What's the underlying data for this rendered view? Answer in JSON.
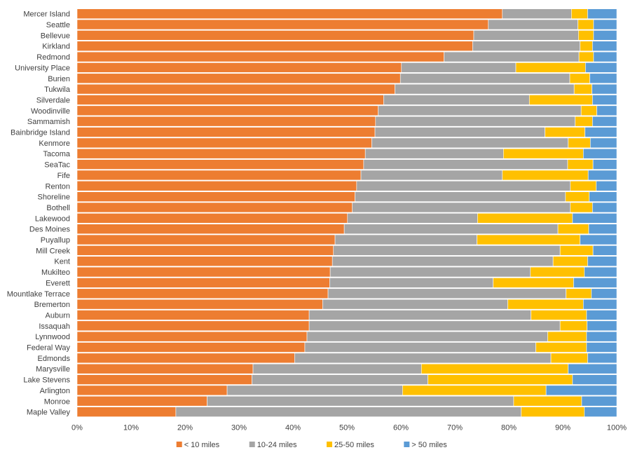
{
  "chart_data": {
    "type": "bar",
    "orientation": "horizontal",
    "stacked": "percent",
    "title": "",
    "xlabel": "",
    "ylabel": "",
    "xlim": [
      0,
      100
    ],
    "x_ticks": [
      "0%",
      "10%",
      "20%",
      "30%",
      "40%",
      "50%",
      "60%",
      "70%",
      "80%",
      "90%",
      "100%"
    ],
    "grid": false,
    "legend_position": "bottom",
    "categories": [
      "Mercer Island",
      "Seattle",
      "Bellevue",
      "Kirkland",
      "Redmond",
      "University Place",
      "Burien",
      "Tukwila",
      "Silverdale",
      "Woodinville",
      "Sammamish",
      "Bainbridge Island",
      "Kenmore",
      "Tacoma",
      "SeaTac",
      "Fife",
      "Renton",
      "Shoreline",
      "Bothell",
      "Lakewood",
      "Des Moines",
      "Puyallup",
      "Mill Creek",
      "Kent",
      "Mukilteo",
      "Everett",
      "Mountlake Terrace",
      "Bremerton",
      "Auburn",
      "Issaquah",
      "Lynnwood",
      "Federal Way",
      "Edmonds",
      "Marysville",
      "Lake Stevens",
      "Arlington",
      "Monroe",
      "Maple Valley"
    ],
    "series": [
      {
        "name": "< 10 miles",
        "color": "#ED7D31",
        "values": [
          78.8,
          76.2,
          73.5,
          73.3,
          68.0,
          60.1,
          59.9,
          58.9,
          56.8,
          55.8,
          55.3,
          55.2,
          54.6,
          53.4,
          53.1,
          52.6,
          51.8,
          51.5,
          51.0,
          50.1,
          49.5,
          47.8,
          47.5,
          47.3,
          46.9,
          46.8,
          46.5,
          45.5,
          43.0,
          43.0,
          42.6,
          42.2,
          40.3,
          32.6,
          32.4,
          27.8,
          24.1,
          18.3
        ]
      },
      {
        "name": "10-24 miles",
        "color": "#A5A5A5",
        "values": [
          12.8,
          16.6,
          19.4,
          19.9,
          25.0,
          21.2,
          31.4,
          33.2,
          27.0,
          37.6,
          37.0,
          31.5,
          36.4,
          25.6,
          37.8,
          26.2,
          39.6,
          39.0,
          40.4,
          24.1,
          39.6,
          26.3,
          42.0,
          40.9,
          37.1,
          30.3,
          44.1,
          34.3,
          41.1,
          46.5,
          44.6,
          42.8,
          47.5,
          31.2,
          32.6,
          32.5,
          56.8,
          64.0
        ]
      },
      {
        "name": "25-50 miles",
        "color": "#FFC000",
        "values": [
          3.0,
          2.9,
          2.8,
          2.3,
          2.7,
          12.9,
          3.7,
          3.3,
          11.7,
          2.9,
          3.2,
          7.4,
          4.1,
          14.8,
          4.7,
          15.9,
          4.8,
          4.4,
          4.1,
          17.6,
          5.7,
          19.1,
          6.1,
          6.4,
          10.0,
          14.9,
          4.7,
          14.0,
          10.3,
          5.0,
          7.2,
          9.4,
          6.8,
          27.2,
          26.8,
          26.6,
          12.6,
          11.7
        ]
      },
      {
        "name": "> 50 miles",
        "color": "#5B9BD5",
        "values": [
          5.4,
          4.3,
          4.3,
          4.5,
          4.3,
          5.8,
          5.0,
          4.6,
          4.5,
          3.7,
          4.5,
          5.9,
          4.9,
          6.2,
          4.4,
          5.3,
          3.8,
          5.1,
          4.5,
          8.2,
          5.2,
          6.8,
          4.4,
          5.4,
          6.0,
          8.0,
          4.7,
          6.2,
          5.6,
          5.5,
          5.6,
          5.6,
          5.4,
          9.0,
          8.2,
          13.1,
          6.5,
          6.0
        ]
      }
    ]
  }
}
